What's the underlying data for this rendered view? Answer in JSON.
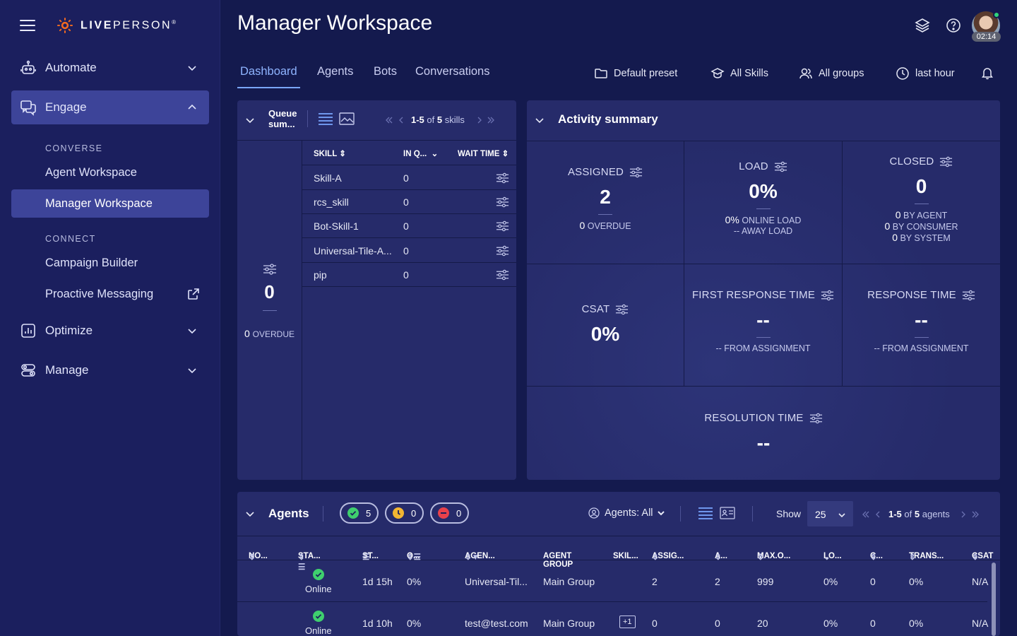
{
  "brand": {
    "logo_text_bold": "LIVE",
    "logo_text_rest": "PERSON",
    "reg": "®"
  },
  "sidebar": {
    "automate": "Automate",
    "engage": "Engage",
    "converse_label": "CONVERSE",
    "agent_workspace": "Agent Workspace",
    "manager_workspace": "Manager Workspace",
    "connect_label": "CONNECT",
    "campaign_builder": "Campaign Builder",
    "proactive_messaging": "Proactive Messaging",
    "optimize": "Optimize",
    "manage": "Manage"
  },
  "header": {
    "title": "Manager Workspace",
    "session_time": "02:14"
  },
  "tabs": [
    "Dashboard",
    "Agents",
    "Bots",
    "Conversations"
  ],
  "filters": {
    "preset": "Default preset",
    "skills": "All Skills",
    "groups": "All groups",
    "time": "last hour"
  },
  "queue": {
    "title_line1": "Queue",
    "title_line2": "sum...",
    "range": "1-5",
    "of_text": "of",
    "total": "5",
    "unit": "skills",
    "total_value": "0",
    "overdue_value": "0",
    "overdue_label": "OVERDUE",
    "columns": [
      "SKILL",
      "IN Q...",
      "WAIT TIME"
    ],
    "rows": [
      {
        "skill": "Skill-A",
        "in_queue": "0"
      },
      {
        "skill": "rcs_skill",
        "in_queue": "0"
      },
      {
        "skill": "Bot-Skill-1",
        "in_queue": "0"
      },
      {
        "skill": "Universal-Tile-A...",
        "in_queue": "0"
      },
      {
        "skill": "pip",
        "in_queue": "0"
      }
    ]
  },
  "activity": {
    "title": "Activity summary",
    "assigned": {
      "label": "ASSIGNED",
      "value": "2",
      "overdue_value": "0",
      "overdue_label": "OVERDUE"
    },
    "load": {
      "label": "LOAD",
      "value": "0%",
      "online_value": "0%",
      "online_label": "ONLINE LOAD",
      "away_value": "--",
      "away_label": "AWAY LOAD"
    },
    "closed": {
      "label": "CLOSED",
      "value": "0",
      "by_agent_value": "0",
      "by_agent_label": "BY AGENT",
      "by_consumer_value": "0",
      "by_consumer_label": "BY CONSUMER",
      "by_system_value": "0",
      "by_system_label": "BY SYSTEM"
    },
    "csat": {
      "label": "CSAT",
      "value": "0%"
    },
    "first_response": {
      "label": "FIRST RESPONSE TIME",
      "value": "--",
      "sub_value": "--",
      "sub_label": "FROM ASSIGNMENT"
    },
    "response": {
      "label": "RESPONSE TIME",
      "value": "--",
      "sub_value": "--",
      "sub_label": "FROM ASSIGNMENT"
    },
    "resolution": {
      "label": "RESOLUTION TIME",
      "value": "--"
    }
  },
  "agents": {
    "title": "Agents",
    "online_count": "5",
    "away_count": "0",
    "busy_count": "0",
    "agents_filter": "Agents: All",
    "show_label": "Show",
    "page_size": "25",
    "range": "1-5",
    "of_text": "of",
    "total": "5",
    "unit": "agents",
    "columns": [
      "NO...",
      "STA...",
      "ST...",
      "O...",
      "AGEN...",
      "AGENT GROUP",
      "SKIL...",
      "ASSIG...",
      "A...",
      "MAX.O...",
      "LO...",
      "C...",
      "TRANS...",
      "CSAT"
    ],
    "rows": [
      {
        "status": "Online",
        "state_time": "1d 15h",
        "occupancy": "0%",
        "agent": "Universal-Til...",
        "group": "Main Group",
        "skills": "",
        "assigned": "2",
        "active": "2",
        "max": "999",
        "load": "0%",
        "closed": "0",
        "transfer": "0%",
        "csat": "N/A"
      },
      {
        "status": "Online",
        "state_time": "1d 10h",
        "occupancy": "0%",
        "agent": "test@test.com",
        "group": "Main Group",
        "skills": "+1",
        "assigned": "0",
        "active": "0",
        "max": "20",
        "load": "0%",
        "closed": "0",
        "transfer": "0%",
        "csat": "N/A"
      }
    ]
  },
  "colors": {
    "accent": "#7aa6ff",
    "sidebar_bg": "#1b1f5e",
    "panel_bg": "#262b6a",
    "online": "#3fcf6e",
    "away": "#f2b632",
    "busy": "#e8414b"
  }
}
